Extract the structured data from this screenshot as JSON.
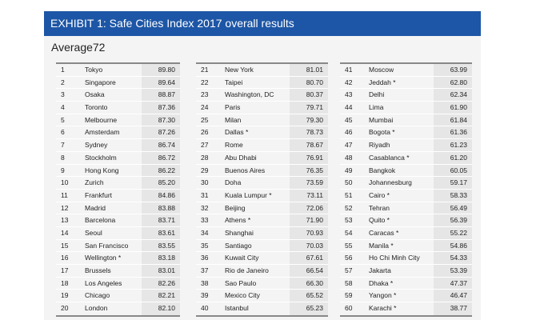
{
  "title": "EXHIBIT 1: Safe Cities Index 2017 overall results",
  "average": "Average72",
  "columns": [
    [
      [
        "1",
        "Tokyo",
        "89.80"
      ],
      [
        "2",
        "Singapore",
        "89.64"
      ],
      [
        "3",
        "Osaka",
        "88.87"
      ],
      [
        "4",
        "Toronto",
        "87.36"
      ],
      [
        "5",
        "Melbourne",
        "87.30"
      ],
      [
        "6",
        "Amsterdam",
        "87.26"
      ],
      [
        "7",
        "Sydney",
        "86.74"
      ],
      [
        "8",
        "Stockholm",
        "86.72"
      ],
      [
        "9",
        "Hong Kong",
        "86.22"
      ],
      [
        "10",
        "Zurich",
        "85.20"
      ],
      [
        "11",
        "Frankfurt",
        "84.86"
      ],
      [
        "12",
        "Madrid",
        "83.88"
      ],
      [
        "13",
        "Barcelona",
        "83.71"
      ],
      [
        "14",
        "Seoul",
        "83.61"
      ],
      [
        "15",
        "San Francisco",
        "83.55"
      ],
      [
        "16",
        "Wellington *",
        "83.18"
      ],
      [
        "17",
        "Brussels",
        "83.01"
      ],
      [
        "18",
        "Los Angeles",
        "82.26"
      ],
      [
        "19",
        "Chicago",
        "82.21"
      ],
      [
        "20",
        "London",
        "82.10"
      ]
    ],
    [
      [
        "21",
        "New York",
        "81.01"
      ],
      [
        "22",
        "Taipei",
        "80.70"
      ],
      [
        "23",
        "Washington, DC",
        "80.37"
      ],
      [
        "24",
        "Paris",
        "79.71"
      ],
      [
        "25",
        "Milan",
        "79.30"
      ],
      [
        "26",
        "Dallas *",
        "78.73"
      ],
      [
        "27",
        "Rome",
        "78.67"
      ],
      [
        "28",
        "Abu Dhabi",
        "76.91"
      ],
      [
        "29",
        "Buenos Aires",
        "76.35"
      ],
      [
        "30",
        "Doha",
        "73.59"
      ],
      [
        "31",
        "Kuala Lumpur *",
        "73.11"
      ],
      [
        "32",
        "Beijing",
        "72.06"
      ],
      [
        "33",
        "Athens *",
        "71.90"
      ],
      [
        "34",
        "Shanghai",
        "70.93"
      ],
      [
        "35",
        "Santiago",
        "70.03"
      ],
      [
        "36",
        "Kuwait City",
        "67.61"
      ],
      [
        "37",
        "Rio de Janeiro",
        "66.54"
      ],
      [
        "38",
        "Sao Paulo",
        "66.30"
      ],
      [
        "39",
        "Mexico City",
        "65.52"
      ],
      [
        "40",
        "Istanbul",
        "65.23"
      ]
    ],
    [
      [
        "41",
        "Moscow",
        "63.99"
      ],
      [
        "42",
        "Jeddah *",
        "62.80"
      ],
      [
        "43",
        "Delhi",
        "62.34"
      ],
      [
        "44",
        "Lima",
        "61.90"
      ],
      [
        "45",
        "Mumbai",
        "61.84"
      ],
      [
        "46",
        "Bogota *",
        "61.36"
      ],
      [
        "47",
        "Riyadh",
        "61.23"
      ],
      [
        "48",
        "Casablanca *",
        "61.20"
      ],
      [
        "49",
        "Bangkok",
        "60.05"
      ],
      [
        "50",
        "Johannesburg",
        "59.17"
      ],
      [
        "51",
        "Cairo *",
        "58.33"
      ],
      [
        "52",
        "Tehran",
        "56.49"
      ],
      [
        "53",
        "Quito *",
        "56.39"
      ],
      [
        "54",
        "Caracas *",
        "55.22"
      ],
      [
        "55",
        "Manila *",
        "54.86"
      ],
      [
        "56",
        "Ho Chi Minh City",
        "54.33"
      ],
      [
        "57",
        "Jakarta",
        "53.39"
      ],
      [
        "58",
        "Dhaka *",
        "47.37"
      ],
      [
        "59",
        "Yangon *",
        "46.47"
      ],
      [
        "60",
        "Karachi *",
        "38.77"
      ]
    ]
  ]
}
